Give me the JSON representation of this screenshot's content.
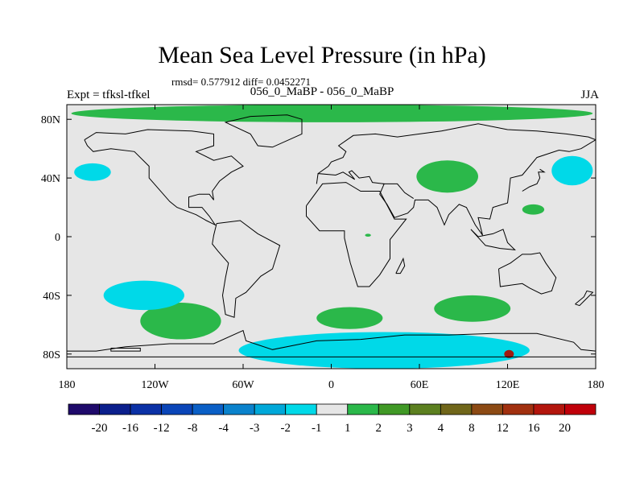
{
  "title": "Mean Sea Level Pressure (in hPa)",
  "stats": "rmsd= 0.577912 diff= 0.0452271",
  "expt": "Expt = tfksl-tfkel",
  "subtitle": "056_0_MaBP - 056_0_MaBP",
  "season": "JJA",
  "colors": {
    "background_field": "#e6e6e6",
    "land_outline": "#000000",
    "positive_anomaly": "#2bb84a",
    "negative_anomaly": "#00d9e8",
    "red_anomaly": "#a11a10"
  },
  "chart_data": {
    "type": "heatmap",
    "title": "Mean Sea Level Pressure (in hPa)",
    "projection": "cylindrical equidistant",
    "xlim": [
      -180,
      180
    ],
    "ylim": [
      -90,
      90
    ],
    "x_ticks": [
      -180,
      -120,
      -60,
      0,
      60,
      120,
      180
    ],
    "x_tick_labels": [
      "180",
      "120W",
      "60W",
      "0",
      "60E",
      "120E",
      "180"
    ],
    "y_ticks": [
      80,
      40,
      0,
      -40,
      -80
    ],
    "y_tick_labels": [
      "80N",
      "40N",
      "0",
      "40S",
      "80S"
    ],
    "colorbar": {
      "labels": [
        "-20",
        "-16",
        "-12",
        "-8",
        "-4",
        "-3",
        "-2",
        "-1",
        "1",
        "2",
        "3",
        "4",
        "8",
        "12",
        "16",
        "20"
      ],
      "colors": [
        "#1f0a6b",
        "#0b1f8c",
        "#0b31a6",
        "#0a45b8",
        "#0a5fc6",
        "#0a82cc",
        "#00a8d9",
        "#00d9e8",
        "#e6e6e6",
        "#2bb84a",
        "#409926",
        "#5c8020",
        "#70661a",
        "#8c4a14",
        "#a1300f",
        "#b3160d",
        "#c0000a"
      ]
    },
    "anomaly_regions": [
      {
        "sign": "positive",
        "label": "north polar belt",
        "lon": [
          -177,
          178
        ],
        "lat": [
          78,
          90
        ]
      },
      {
        "sign": "positive",
        "label": "east asia",
        "lon": [
          58,
          100
        ],
        "lat": [
          30,
          52
        ]
      },
      {
        "sign": "positive",
        "label": "north pacific small",
        "lon": [
          130,
          145
        ],
        "lat": [
          15,
          22
        ]
      },
      {
        "sign": "positive",
        "label": "central africa dot",
        "lon": [
          23,
          27
        ],
        "lat": [
          0,
          2
        ]
      },
      {
        "sign": "positive",
        "label": "south pacific",
        "lon": [
          -130,
          -75
        ],
        "lat": [
          -70,
          -45
        ]
      },
      {
        "sign": "positive",
        "label": "south atlantic",
        "lon": [
          -10,
          35
        ],
        "lat": [
          -63,
          -48
        ]
      },
      {
        "sign": "positive",
        "label": "southern indian",
        "lon": [
          70,
          122
        ],
        "lat": [
          -58,
          -40
        ]
      },
      {
        "sign": "negative",
        "label": "north pacific west",
        "lon": [
          -175,
          -150
        ],
        "lat": [
          38,
          50
        ]
      },
      {
        "sign": "negative",
        "label": "north pacific east",
        "lon": [
          150,
          178
        ],
        "lat": [
          35,
          55
        ]
      },
      {
        "sign": "negative",
        "label": "south pacific",
        "lon": [
          -155,
          -100
        ],
        "lat": [
          -50,
          -30
        ]
      },
      {
        "sign": "negative",
        "label": "antarctic coast",
        "lon": [
          -63,
          135
        ],
        "lat": [
          -90,
          -65
        ]
      }
    ]
  }
}
